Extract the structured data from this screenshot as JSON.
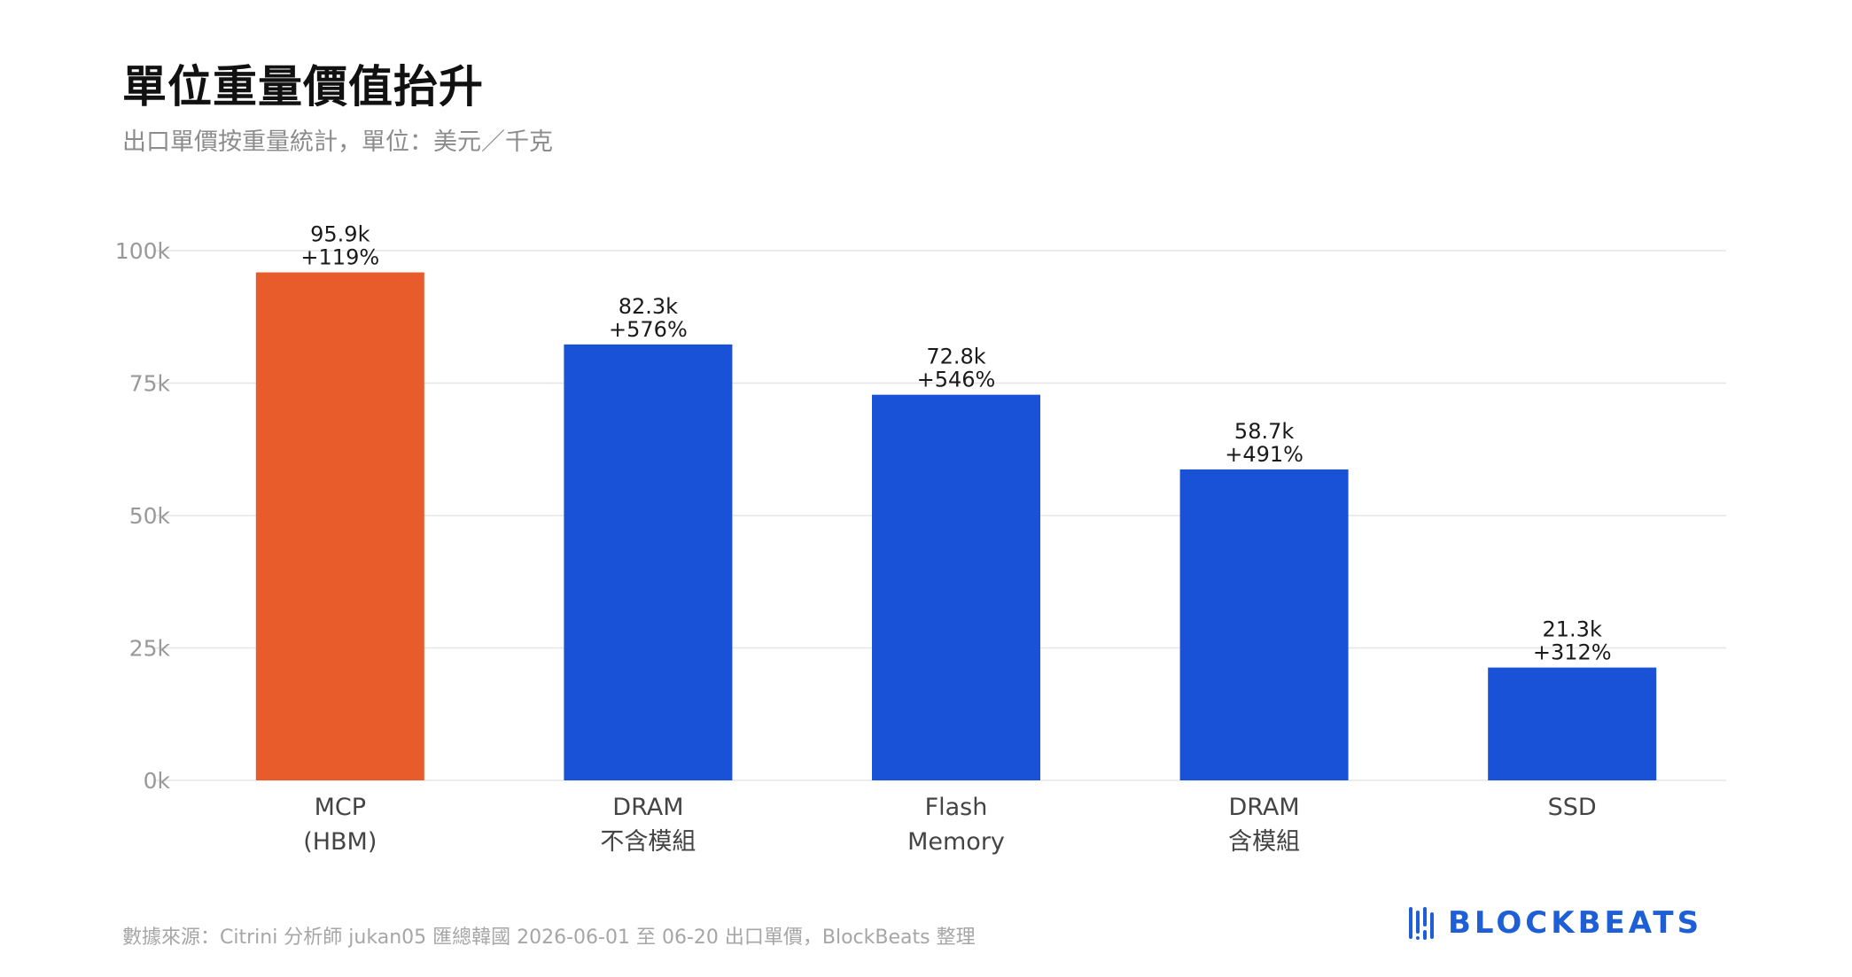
{
  "title": "單位重量價值抬升",
  "subtitle": "出口單價按重量統計，單位：美元／千克",
  "source": "數據來源：Citrini 分析師 jukan05 匯總韓國 2026-06-01 至 06-20 出口單價，BlockBeats 整理",
  "brand": {
    "name": "BLOCKBEATS",
    "icon": "blockbeats-logo-icon",
    "color": "#1f5fd6"
  },
  "colors": {
    "highlight": "#e85c2b",
    "bar": "#1952d6",
    "grid": "#e6e6e6",
    "tick": "#999999"
  },
  "chart_data": {
    "type": "bar",
    "categories": [
      [
        "MCP",
        "(HBM)"
      ],
      [
        "DRAM",
        "不含模組"
      ],
      [
        "Flash",
        "Memory"
      ],
      [
        "DRAM",
        "含模組"
      ],
      [
        "SSD"
      ]
    ],
    "values": [
      95.9,
      82.3,
      72.8,
      58.7,
      21.3
    ],
    "value_labels": [
      "95.9k",
      "82.3k",
      "72.8k",
      "58.7k",
      "21.3k"
    ],
    "change_labels": [
      "+119%",
      "+576%",
      "+546%",
      "+491%",
      "+312%"
    ],
    "highlight_index": 0,
    "ylim": [
      0,
      100
    ],
    "yticks": [
      0,
      25,
      50,
      75,
      100
    ],
    "ytick_labels": [
      "0k",
      "25k",
      "50k",
      "75k",
      "100k"
    ],
    "grid": true,
    "xlabel": "",
    "ylabel": ""
  }
}
